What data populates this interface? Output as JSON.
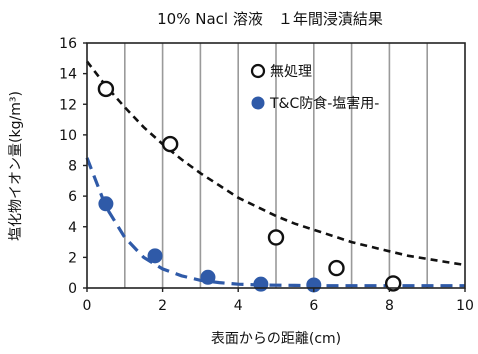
{
  "chart_data": {
    "type": "scatter",
    "title": "10% Nacl 溶液　１年間浸漬結果",
    "xlabel": "表面からの距離(cm)",
    "ylabel": "塩化物イオン量(kg/m³)",
    "xlim": [
      0,
      10
    ],
    "ylim": [
      0,
      16
    ],
    "xticks": [
      0,
      2,
      4,
      6,
      8,
      10
    ],
    "yticks": [
      0,
      2,
      4,
      6,
      8,
      10,
      12,
      14,
      16
    ],
    "grid": "vertical",
    "legend_position": "top-right",
    "series": [
      {
        "name": "無処理",
        "marker": "open-circle",
        "color": "#111111",
        "points": [
          [
            0.5,
            13.0
          ],
          [
            2.2,
            9.4
          ],
          [
            5.0,
            3.3
          ],
          [
            6.6,
            1.3
          ],
          [
            8.1,
            0.3
          ]
        ],
        "trend": "exponential",
        "trend_x": [
          0,
          0.5,
          1,
          1.5,
          2,
          2.5,
          3,
          3.5,
          4,
          4.5,
          5,
          5.5,
          6,
          6.5,
          7,
          7.5,
          8,
          8.5,
          9,
          9.5,
          10
        ],
        "trend_y": [
          14.8,
          13.2,
          11.8,
          10.5,
          9.4,
          8.4,
          7.5,
          6.7,
          5.9,
          5.3,
          4.7,
          4.2,
          3.8,
          3.4,
          3.0,
          2.7,
          2.4,
          2.1,
          1.9,
          1.7,
          1.5
        ]
      },
      {
        "name": "T&C防食-塩害用-",
        "marker": "filled-circle",
        "color": "#2f5aa8",
        "points": [
          [
            0.5,
            5.5
          ],
          [
            1.8,
            2.1
          ],
          [
            3.2,
            0.7
          ],
          [
            4.6,
            0.25
          ],
          [
            6.0,
            0.2
          ]
        ],
        "trend": "exponential",
        "trend_x": [
          0,
          0.5,
          1,
          1.5,
          2,
          2.5,
          3,
          3.5,
          4,
          4.5,
          5,
          5.5,
          6,
          6.5,
          7,
          7.5,
          8,
          8.5,
          9,
          9.5,
          10
        ],
        "trend_y": [
          8.5,
          5.3,
          3.3,
          2.0,
          1.25,
          0.8,
          0.5,
          0.35,
          0.25,
          0.2,
          0.18,
          0.17,
          0.16,
          0.15,
          0.15,
          0.15,
          0.15,
          0.15,
          0.15,
          0.15,
          0.15
        ]
      }
    ]
  }
}
